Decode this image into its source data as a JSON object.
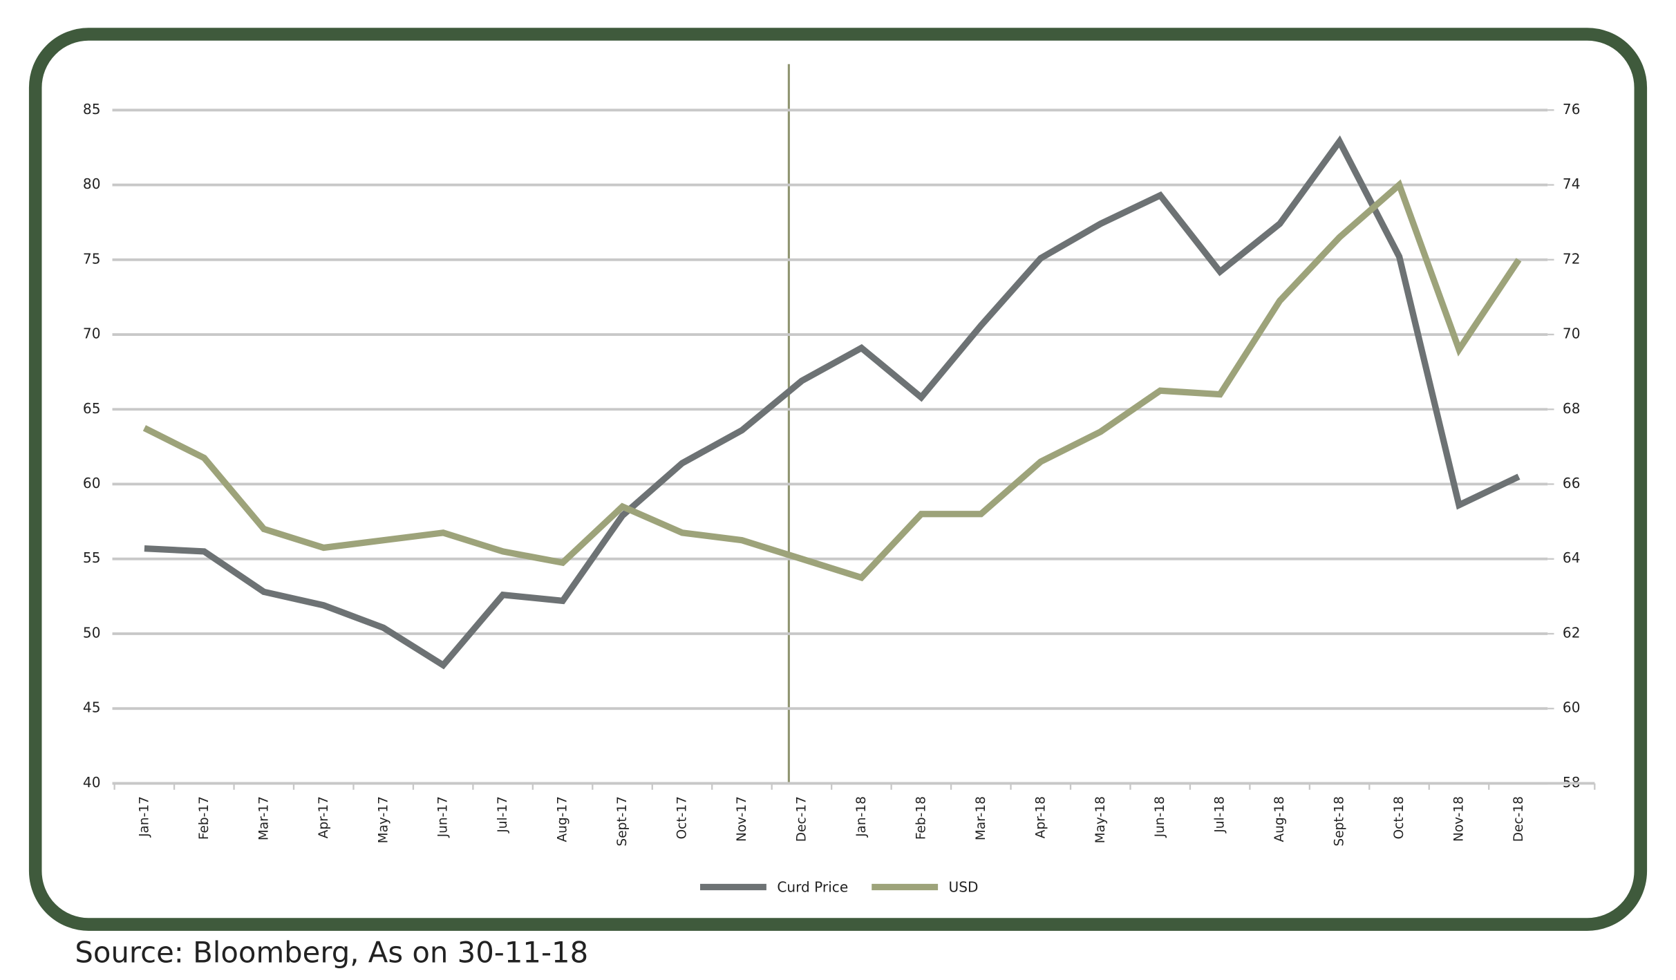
{
  "chart_data": {
    "type": "line",
    "categories": [
      "Jan-17",
      "Feb-17",
      "Mar-17",
      "Apr-17",
      "May-17",
      "Jun-17",
      "Jul-17",
      "Aug-17",
      "Sept-17",
      "Oct-17",
      "Nov-17",
      "Dec-17",
      "Jan-18",
      "Feb-18",
      "Mar-18",
      "Apr-18",
      "May-18",
      "Jun-18",
      "Jul-18",
      "Aug-18",
      "Sept-18",
      "Oct-18",
      "Nov-18",
      "Dec-18"
    ],
    "series": [
      {
        "name": "Curd Price",
        "color": "#6d7274",
        "values": [
          55.7,
          55.5,
          52.8,
          51.9,
          50.4,
          47.9,
          52.6,
          52.2,
          57.9,
          61.4,
          63.6,
          66.9,
          69.1,
          65.8,
          70.6,
          75.1,
          77.4,
          79.3,
          74.2,
          77.4,
          82.9,
          75.2,
          58.6,
          60.5
        ]
      },
      {
        "name": "USD",
        "color": "#9da37a",
        "axis": "y2",
        "values": [
          67.5,
          66.7,
          64.8,
          64.3,
          64.5,
          64.7,
          64.2,
          63.9,
          65.4,
          64.7,
          64.5,
          64.0,
          63.5,
          65.2,
          65.2,
          66.6,
          67.4,
          68.5,
          68.4,
          70.9,
          72.6,
          74.0,
          69.6,
          72.0
        ]
      }
    ],
    "ylim": [
      40,
      85
    ],
    "yticks": [
      40,
      45,
      50,
      55,
      60,
      65,
      70,
      75,
      80,
      85
    ],
    "y2lim": [
      58,
      76
    ],
    "y2ticks": [
      58,
      60,
      62,
      64,
      66,
      68,
      70,
      72,
      74,
      76
    ],
    "grid": true,
    "legend": "bottom",
    "source": "Source: Bloomberg, As on 30-11-18"
  }
}
